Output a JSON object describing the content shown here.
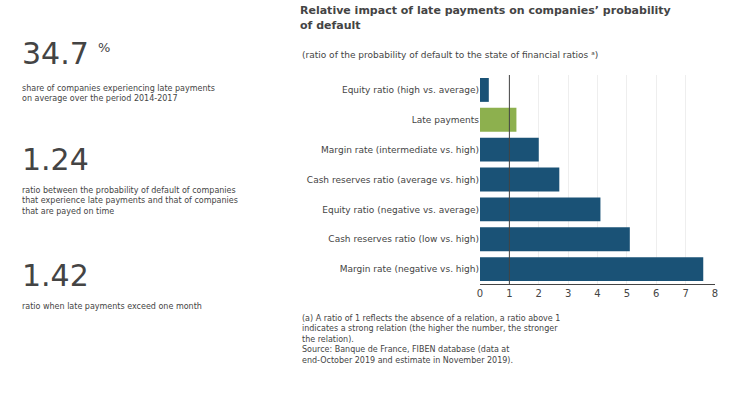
{
  "chart_data": {
    "type": "bar",
    "orientation": "horizontal",
    "title": "Relative impact of late payments on companies’ probability\nof default",
    "subtitle": "(ratio of the probability of default to the state of financial ratios ᵃ)",
    "categories": [
      "Equity ratio (high vs. average)",
      "Late payments",
      "Margin rate (intermediate vs. high)",
      "Cash reserves ratio (average vs. high)",
      "Equity ratio (negative vs. average)",
      "Cash reserves ratio (low vs. high)",
      "Margin rate (negative vs. high)"
    ],
    "values": [
      0.3,
      1.24,
      2.0,
      2.7,
      4.1,
      5.1,
      7.6
    ],
    "colors": [
      "#1a5276",
      "#8db04e",
      "#1a5276",
      "#1a5276",
      "#1a5276",
      "#1a5276",
      "#1a5276"
    ],
    "xlim": [
      0,
      8
    ],
    "xticks": [
      0,
      1,
      2,
      3,
      4,
      5,
      6,
      7,
      8
    ],
    "grid": true,
    "reference_line": 1,
    "annotations": [
      "34.7",
      "%",
      "share of companies experiencing late payments\non average over the period 2014-2017",
      "1.24",
      "ratio between the probability of default of companies\nthat experience late payments and that of companies\nthat are payed on time",
      "1.42",
      "ratio when late payments exceed one month",
      "(a) A ratio of 1 reflects the absence of a relation, a ratio above 1\nindicates a strong relation (the higher the number, the stronger\nthe relation).\nSource: Banque de France, FIBEN database (data at\nend-October 2019 and estimate in November 2019)."
    ]
  }
}
